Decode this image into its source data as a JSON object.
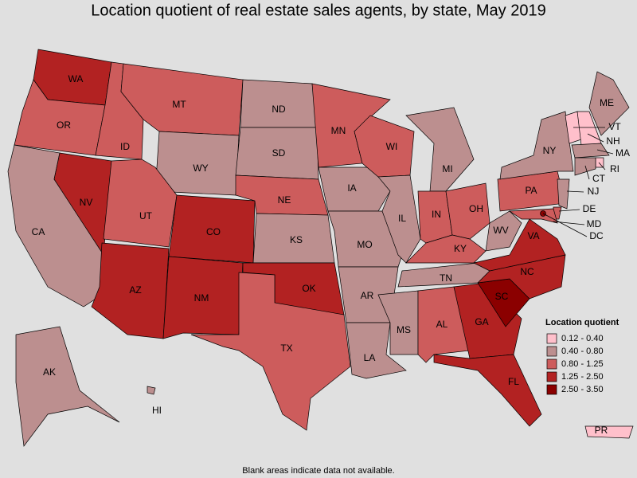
{
  "title": "Location quotient of real estate sales agents, by state, May 2019",
  "footnote": "Blank areas indicate data not available.",
  "legend": {
    "title": "Location quotient",
    "bins": [
      {
        "label": "0.12 - 0.40",
        "color": "#ffc0cb"
      },
      {
        "label": "0.40 - 0.80",
        "color": "#bc8f8f"
      },
      {
        "label": "0.80 - 1.25",
        "color": "#cd5c5c"
      },
      {
        "label": "1.25 - 2.50",
        "color": "#b22222"
      },
      {
        "label": "2.50 - 3.50",
        "color": "#8b0000"
      }
    ]
  },
  "states": [
    {
      "label": "WA",
      "color": "#b22222"
    },
    {
      "label": "OR",
      "color": "#cd5c5c"
    },
    {
      "label": "CA",
      "color": "#bc8f8f"
    },
    {
      "label": "NV",
      "color": "#b22222"
    },
    {
      "label": "ID",
      "color": "#cd5c5c"
    },
    {
      "label": "MT",
      "color": "#cd5c5c"
    },
    {
      "label": "WY",
      "color": "#bc8f8f"
    },
    {
      "label": "UT",
      "color": "#cd5c5c"
    },
    {
      "label": "CO",
      "color": "#b22222"
    },
    {
      "label": "AZ",
      "color": "#b22222"
    },
    {
      "label": "NM",
      "color": "#b22222"
    },
    {
      "label": "ND",
      "color": "#bc8f8f"
    },
    {
      "label": "SD",
      "color": "#bc8f8f"
    },
    {
      "label": "NE",
      "color": "#cd5c5c"
    },
    {
      "label": "KS",
      "color": "#bc8f8f"
    },
    {
      "label": "OK",
      "color": "#b22222"
    },
    {
      "label": "TX",
      "color": "#cd5c5c"
    },
    {
      "label": "MN",
      "color": "#cd5c5c"
    },
    {
      "label": "IA",
      "color": "#bc8f8f"
    },
    {
      "label": "MO",
      "color": "#bc8f8f"
    },
    {
      "label": "AR",
      "color": "#bc8f8f"
    },
    {
      "label": "LA",
      "color": "#bc8f8f"
    },
    {
      "label": "WI",
      "color": "#cd5c5c"
    },
    {
      "label": "IL",
      "color": "#bc8f8f"
    },
    {
      "label": "MI",
      "color": "#bc8f8f"
    },
    {
      "label": "IN",
      "color": "#cd5c5c"
    },
    {
      "label": "OH",
      "color": "#cd5c5c"
    },
    {
      "label": "KY",
      "color": "#cd5c5c"
    },
    {
      "label": "TN",
      "color": "#bc8f8f"
    },
    {
      "label": "MS",
      "color": "#bc8f8f"
    },
    {
      "label": "AL",
      "color": "#cd5c5c"
    },
    {
      "label": "GA",
      "color": "#b22222"
    },
    {
      "label": "FL",
      "color": "#b22222"
    },
    {
      "label": "SC",
      "color": "#8b0000"
    },
    {
      "label": "NC",
      "color": "#b22222"
    },
    {
      "label": "VA",
      "color": "#b22222"
    },
    {
      "label": "WV",
      "color": "#bc8f8f"
    },
    {
      "label": "PA",
      "color": "#cd5c5c"
    },
    {
      "label": "NY",
      "color": "#bc8f8f"
    },
    {
      "label": "VT",
      "color": "#ffc0cb"
    },
    {
      "label": "NH",
      "color": "#ffc0cb"
    },
    {
      "label": "ME",
      "color": "#bc8f8f"
    },
    {
      "label": "MA",
      "color": "#bc8f8f"
    },
    {
      "label": "RI",
      "color": "#ffc0cb"
    },
    {
      "label": "CT",
      "color": "#bc8f8f"
    },
    {
      "label": "NJ",
      "color": "#bc8f8f"
    },
    {
      "label": "DE",
      "color": "#cd5c5c"
    },
    {
      "label": "MD",
      "color": "#cd5c5c"
    },
    {
      "label": "DC",
      "color": "#8b0000"
    },
    {
      "label": "AK",
      "color": "#bc8f8f"
    },
    {
      "label": "HI",
      "color": "#bc8f8f"
    },
    {
      "label": "PR",
      "color": "#ffc0cb"
    }
  ]
}
